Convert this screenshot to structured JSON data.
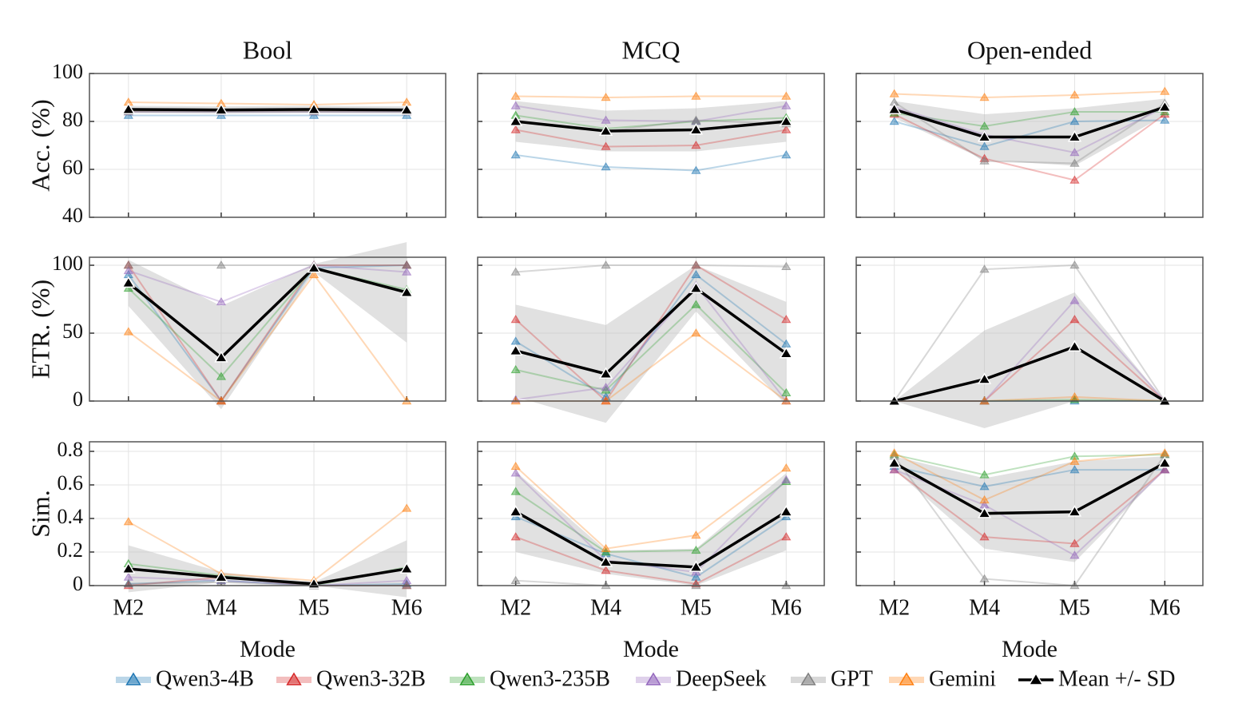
{
  "chart_data": [
    {
      "type": "line",
      "title": "Bool",
      "ylabel": "Acc. (%)",
      "categories": [
        "M2",
        "M4",
        "M5",
        "M6"
      ],
      "ylim": [
        40,
        100
      ],
      "yticks": [
        40,
        60,
        80,
        100
      ],
      "grid": true,
      "series": [
        {
          "name": "Qwen3-4B",
          "color": "#1f77b4",
          "values": [
            82.5,
            82.5,
            82.5,
            82.5
          ]
        },
        {
          "name": "Qwen3-32B",
          "color": "#d62728",
          "values": [
            84.5,
            84.5,
            84.5,
            84.5
          ]
        },
        {
          "name": "Qwen3-235B",
          "color": "#2ca02c",
          "values": [
            84.5,
            84.5,
            84.5,
            84.5
          ]
        },
        {
          "name": "DeepSeek",
          "color": "#9467bd",
          "values": [
            84,
            84,
            84,
            84
          ]
        },
        {
          "name": "GPT",
          "color": "#7f7f7f",
          "values": [
            84,
            84,
            84,
            84
          ]
        },
        {
          "name": "Gemini",
          "color": "#ff7f0e",
          "values": [
            88,
            87.5,
            87,
            88
          ]
        },
        {
          "name": "Mean +/- SD",
          "color": "#000000",
          "values": [
            85,
            84.8,
            85,
            84.8
          ],
          "sd": [
            1.5,
            1.5,
            1.5,
            1.5
          ]
        }
      ]
    },
    {
      "type": "line",
      "title": "MCQ",
      "categories": [
        "M2",
        "M4",
        "M5",
        "M6"
      ],
      "ylim": [
        40,
        100
      ],
      "yticks": [
        40,
        60,
        80,
        100
      ],
      "grid": true,
      "series": [
        {
          "values": [
            66,
            61,
            59.5,
            66
          ]
        },
        {
          "values": [
            76.5,
            69.5,
            70,
            76.5
          ]
        },
        {
          "values": [
            82.5,
            77,
            80,
            81.5
          ]
        },
        {
          "values": [
            86.5,
            80.5,
            80,
            86.5
          ]
        },
        {
          "values": [
            80,
            76,
            80.5,
            79
          ]
        },
        {
          "values": [
            90.5,
            90,
            90.5,
            90.5
          ]
        },
        {
          "values": [
            80,
            76,
            76.5,
            80
          ],
          "sd": [
            8.5,
            8.5,
            9,
            8.5
          ]
        }
      ]
    },
    {
      "type": "line",
      "title": "Open-ended",
      "categories": [
        "M2",
        "M4",
        "M5",
        "M6"
      ],
      "ylim": [
        40,
        100
      ],
      "yticks": [
        40,
        60,
        80,
        100
      ],
      "grid": true,
      "series": [
        {
          "values": [
            80,
            69.5,
            80,
            80.5
          ]
        },
        {
          "values": [
            83,
            64.5,
            55.5,
            83
          ]
        },
        {
          "values": [
            83.5,
            78,
            84,
            84
          ]
        },
        {
          "values": [
            86,
            74.5,
            67,
            86
          ]
        },
        {
          "values": [
            88,
            63.5,
            62.5,
            87.5
          ]
        },
        {
          "values": [
            91.5,
            90,
            91,
            92.5
          ]
        },
        {
          "values": [
            85,
            73.5,
            73.5,
            86
          ],
          "sd": [
            3.5,
            9.5,
            12,
            3.5
          ]
        }
      ]
    },
    {
      "type": "line",
      "ylabel": "ETR. (%)",
      "categories": [
        "M2",
        "M4",
        "M5",
        "M6"
      ],
      "ylim": [
        0,
        105.9
      ],
      "yticks": [
        0,
        50,
        100
      ],
      "grid": true,
      "series": [
        {
          "values": [
            93,
            0,
            98,
            100
          ]
        },
        {
          "values": [
            100,
            0,
            100,
            100
          ]
        },
        {
          "values": [
            83,
            18,
            98,
            82
          ]
        },
        {
          "values": [
            96,
            73,
            100,
            95
          ]
        },
        {
          "values": [
            100,
            100,
            100,
            100
          ]
        },
        {
          "values": [
            51,
            0,
            93,
            0
          ]
        },
        {
          "values": [
            87,
            32,
            98,
            80
          ],
          "sd": [
            17,
            38,
            3,
            37
          ]
        }
      ]
    },
    {
      "type": "line",
      "categories": [
        "M2",
        "M4",
        "M5",
        "M6"
      ],
      "ylim": [
        0,
        105.9
      ],
      "yticks": [
        0,
        50,
        100
      ],
      "grid": true,
      "series": [
        {
          "values": [
            44,
            3,
            93,
            42
          ]
        },
        {
          "values": [
            60,
            0,
            100,
            60
          ]
        },
        {
          "values": [
            23,
            8,
            71,
            6
          ]
        },
        {
          "values": [
            1,
            10,
            85,
            0
          ]
        },
        {
          "values": [
            95,
            100,
            100,
            99
          ]
        },
        {
          "values": [
            0,
            0,
            50,
            0
          ]
        },
        {
          "values": [
            37,
            20,
            83,
            35
          ],
          "sd": [
            34,
            36,
            17,
            38
          ]
        }
      ]
    },
    {
      "type": "line",
      "categories": [
        "M2",
        "M4",
        "M5",
        "M6"
      ],
      "ylim": [
        0,
        105.9
      ],
      "yticks": [
        0,
        50,
        100
      ],
      "grid": true,
      "series": [
        {
          "values": [
            0,
            0,
            0,
            0
          ]
        },
        {
          "values": [
            0,
            0,
            60,
            0
          ]
        },
        {
          "values": [
            0,
            0,
            1,
            0
          ]
        },
        {
          "values": [
            0,
            0,
            74,
            0
          ]
        },
        {
          "values": [
            0,
            97,
            100,
            0
          ]
        },
        {
          "values": [
            0,
            0,
            3,
            0
          ]
        },
        {
          "values": [
            0,
            16,
            40,
            0
          ],
          "sd": [
            0,
            36,
            40,
            0
          ]
        }
      ]
    },
    {
      "type": "line",
      "ylabel": "Sim.",
      "xlabel": "Mode",
      "categories": [
        "M2",
        "M4",
        "M5",
        "M6"
      ],
      "ylim": [
        0,
        0.857
      ],
      "yticks": [
        0,
        0.2,
        0.4,
        0.6,
        0.8
      ],
      "grid": true,
      "series": [
        {
          "values": [
            0.01,
            0.03,
            0,
            0.01
          ]
        },
        {
          "values": [
            0,
            0.05,
            0,
            0
          ]
        },
        {
          "values": [
            0.13,
            0.06,
            0,
            0.11
          ]
        },
        {
          "values": [
            0.05,
            0.03,
            0,
            0.03
          ]
        },
        {
          "values": [
            0.01,
            0.02,
            0,
            0
          ]
        },
        {
          "values": [
            0.38,
            0.07,
            0.03,
            0.46
          ]
        },
        {
          "values": [
            0.1,
            0.05,
            0.01,
            0.1
          ],
          "sd": [
            0.14,
            0.03,
            0.01,
            0.17
          ]
        }
      ]
    },
    {
      "type": "line",
      "xlabel": "Mode",
      "categories": [
        "M2",
        "M4",
        "M5",
        "M6"
      ],
      "ylim": [
        0,
        0.857
      ],
      "yticks": [
        0,
        0.2,
        0.4,
        0.6,
        0.8
      ],
      "grid": true,
      "series": [
        {
          "values": [
            0.41,
            0.19,
            0.05,
            0.41
          ]
        },
        {
          "values": [
            0.29,
            0.09,
            0.01,
            0.29
          ]
        },
        {
          "values": [
            0.56,
            0.2,
            0.21,
            0.62
          ]
        },
        {
          "values": [
            0.67,
            0.15,
            0.08,
            0.63
          ]
        },
        {
          "values": [
            0.03,
            0,
            0,
            0
          ]
        },
        {
          "values": [
            0.71,
            0.22,
            0.3,
            0.7
          ]
        },
        {
          "values": [
            0.44,
            0.14,
            0.11,
            0.44
          ],
          "sd": [
            0.24,
            0.07,
            0.11,
            0.23
          ]
        }
      ]
    },
    {
      "type": "line",
      "xlabel": "Mode",
      "categories": [
        "M2",
        "M4",
        "M5",
        "M6"
      ],
      "ylim": [
        0,
        0.857
      ],
      "yticks": [
        0,
        0.2,
        0.4,
        0.6,
        0.8
      ],
      "grid": true,
      "series": [
        {
          "values": [
            0.71,
            0.59,
            0.69,
            0.69
          ]
        },
        {
          "values": [
            0.69,
            0.29,
            0.25,
            0.69
          ]
        },
        {
          "values": [
            0.78,
            0.66,
            0.77,
            0.78
          ]
        },
        {
          "values": [
            0.69,
            0.48,
            0.18,
            0.69
          ]
        },
        {
          "values": [
            0.77,
            0.04,
            0,
            0.78
          ]
        },
        {
          "values": [
            0.79,
            0.51,
            0.74,
            0.79
          ]
        },
        {
          "values": [
            0.73,
            0.43,
            0.44,
            0.73
          ],
          "sd": [
            0.04,
            0.21,
            0.3,
            0.04
          ]
        }
      ]
    }
  ]
}
